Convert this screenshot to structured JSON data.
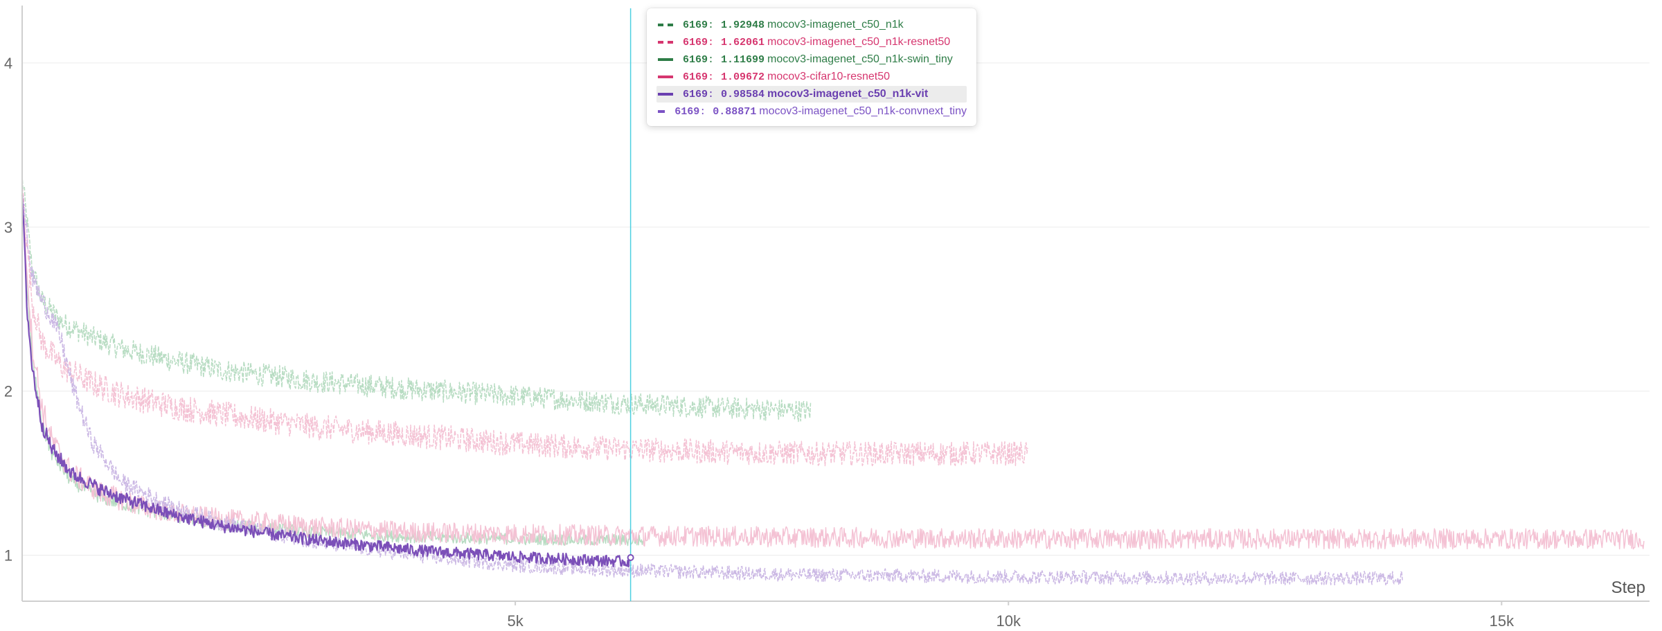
{
  "chart_data": {
    "type": "line",
    "title": "",
    "xlabel": "Step",
    "ylabel": "",
    "xlim": [
      0,
      16500
    ],
    "ylim": [
      0.72,
      4.35
    ],
    "x_ticks": [
      5000,
      10000,
      15000
    ],
    "x_tick_labels": [
      "5k",
      "10k",
      "15k"
    ],
    "y_ticks": [
      1,
      2,
      3,
      4
    ],
    "y_tick_labels": [
      "1",
      "2",
      "3",
      "4"
    ],
    "grid": true,
    "legend_placement": "top-center",
    "hover_step": 6169,
    "series": [
      {
        "name": "mocov3-imagenet_c50_n1k",
        "color": "#b7dcc2",
        "legend_color": "#2e7d47",
        "dashed": true,
        "highlighted": false,
        "hover_value": "1.92948",
        "x": [
          0,
          100,
          200,
          400,
          700,
          1000,
          1500,
          2000,
          3000,
          4000,
          5000,
          6000,
          7000,
          8000
        ],
        "y": [
          3.3,
          2.75,
          2.55,
          2.42,
          2.33,
          2.26,
          2.19,
          2.13,
          2.06,
          2.01,
          1.97,
          1.93,
          1.9,
          1.88
        ],
        "noise": 0.05
      },
      {
        "name": "mocov3-imagenet_c50_n1k-resnet50",
        "color": "#f4c2d4",
        "legend_color": "#d6366f",
        "dashed": true,
        "highlighted": false,
        "hover_value": "1.62061",
        "x": [
          0,
          100,
          200,
          400,
          700,
          1000,
          1500,
          2000,
          3000,
          4000,
          5000,
          6000,
          7000,
          8000,
          9000,
          10200
        ],
        "y": [
          3.25,
          2.55,
          2.3,
          2.15,
          2.05,
          1.98,
          1.91,
          1.86,
          1.78,
          1.73,
          1.68,
          1.65,
          1.63,
          1.62,
          1.62,
          1.62
        ],
        "noise": 0.06
      },
      {
        "name": "mocov3-imagenet_c50_n1k-swin_tiny",
        "color": "#b7dcc2",
        "legend_color": "#2e7d47",
        "dashed": false,
        "highlighted": false,
        "hover_value": "1.11699",
        "x": [
          0,
          100,
          200,
          300,
          500,
          800,
          1200,
          1600,
          2000,
          3000,
          4000,
          5000,
          6300
        ],
        "y": [
          3.1,
          2.2,
          1.8,
          1.62,
          1.45,
          1.35,
          1.28,
          1.23,
          1.19,
          1.14,
          1.11,
          1.1,
          1.09
        ],
        "noise": 0.035
      },
      {
        "name": "mocov3-cifar10-resnet50",
        "color": "#f4c2d4",
        "legend_color": "#d6366f",
        "dashed": false,
        "highlighted": false,
        "hover_value": "1.09672",
        "x": [
          0,
          100,
          200,
          300,
          500,
          800,
          1200,
          1600,
          2000,
          3000,
          4000,
          6000,
          8000,
          10000,
          12000,
          14000,
          16450
        ],
        "y": [
          3.2,
          2.3,
          1.9,
          1.7,
          1.5,
          1.38,
          1.3,
          1.25,
          1.22,
          1.17,
          1.14,
          1.12,
          1.11,
          1.1,
          1.1,
          1.1,
          1.1
        ],
        "noise": 0.06
      },
      {
        "name": "mocov3-imagenet_c50_n1k-vit",
        "color": "#7b4fb8",
        "legend_color": "#6a3fb0",
        "dashed": false,
        "highlighted": true,
        "hover_value": "0.98584",
        "x": [
          0,
          50,
          100,
          200,
          300,
          500,
          800,
          1000,
          1500,
          2000,
          2500,
          3000,
          4000,
          5000,
          6169
        ],
        "y": [
          3.2,
          2.5,
          2.15,
          1.8,
          1.65,
          1.5,
          1.4,
          1.35,
          1.25,
          1.18,
          1.13,
          1.09,
          1.03,
          0.99,
          0.96
        ],
        "noise": 0.035
      },
      {
        "name": "mocov3-imagenet_c50_n1k-convnext_tiny",
        "color": "#cbb8e4",
        "legend_color": "#7b52c4",
        "dashed": true,
        "highlighted": false,
        "hover_value": "0.88871",
        "x": [
          0,
          100,
          200,
          300,
          400,
          500,
          700,
          1000,
          1500,
          2000,
          3000,
          4000,
          5000,
          6000,
          8000,
          10000,
          12000,
          14000
        ],
        "y": [
          3.2,
          2.7,
          2.55,
          2.45,
          2.3,
          2.05,
          1.7,
          1.45,
          1.3,
          1.2,
          1.08,
          1.0,
          0.94,
          0.91,
          0.88,
          0.87,
          0.86,
          0.86
        ],
        "noise": 0.045
      }
    ]
  },
  "legend": {
    "rows": [
      {
        "step": "6169",
        "sep": ":",
        "value": "1.92948",
        "name": "mocov3-imagenet_c50_n1k",
        "color": "#2e7d47",
        "dashed": true,
        "active": false
      },
      {
        "step": "6169",
        "sep": ":",
        "value": "1.62061",
        "name": "mocov3-imagenet_c50_n1k-resnet50",
        "color": "#d6366f",
        "dashed": true,
        "active": false
      },
      {
        "step": "6169",
        "sep": ":",
        "value": "1.11699",
        "name": "mocov3-imagenet_c50_n1k-swin_tiny",
        "color": "#2e7d47",
        "dashed": false,
        "active": false
      },
      {
        "step": "6169",
        "sep": ":",
        "value": "1.09672",
        "name": "mocov3-cifar10-resnet50",
        "color": "#d6366f",
        "dashed": false,
        "active": false
      },
      {
        "step": "6169",
        "sep": ":",
        "value": "0.98584",
        "name": "mocov3-imagenet_c50_n1k-vit",
        "color": "#6a3fb0",
        "dashed": false,
        "active": true
      },
      {
        "step": "6169",
        "sep": ":",
        "value": "0.88871",
        "name": "mocov3-imagenet_c50_n1k-convnext_tiny",
        "color": "#7b52c4",
        "dashed": true,
        "active": false
      }
    ]
  },
  "colors": {
    "grid": "#ececec",
    "axis": "#cfcfcf",
    "hover_line": "#4dd0e1"
  }
}
